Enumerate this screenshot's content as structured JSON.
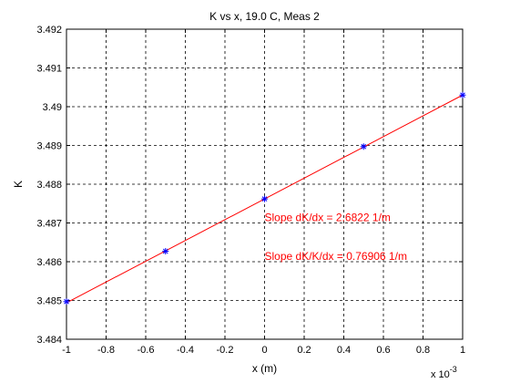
{
  "chart_data": {
    "type": "line",
    "title": "K vs x, 19.0 C, Meas 2",
    "xlabel": "x (m)",
    "ylabel": "K",
    "x_multiplier_label": "x 10",
    "x_multiplier_exponent": "-3",
    "xlim": [
      -0.001,
      0.001
    ],
    "ylim": [
      3.484,
      3.492
    ],
    "x_ticks": [
      -1,
      -0.8,
      -0.6,
      -0.4,
      -0.2,
      0,
      0.2,
      0.4,
      0.6,
      0.8,
      1
    ],
    "x_tick_labels": [
      "-1",
      "-0.8",
      "-0.6",
      "-0.4",
      "-0.2",
      "0",
      "0.2",
      "0.4",
      "0.6",
      "0.8",
      "1"
    ],
    "y_ticks": [
      3.484,
      3.485,
      3.486,
      3.487,
      3.488,
      3.489,
      3.49,
      3.491,
      3.492
    ],
    "y_tick_labels": [
      "3.484",
      "3.485",
      "3.486",
      "3.487",
      "3.488",
      "3.489",
      "3.49",
      "3.491",
      "3.492"
    ],
    "grid": true,
    "series": [
      {
        "type": "scatter",
        "marker": "*",
        "color": "#0000ff",
        "x": [
          -0.001,
          -0.0005,
          0,
          0.0005,
          0.001
        ],
        "y": [
          3.48497,
          3.48627,
          3.48762,
          3.48897,
          3.4903
        ]
      },
      {
        "type": "line",
        "color": "#ff0000",
        "x": [
          -0.001,
          0.001
        ],
        "y": [
          3.48494,
          3.4903
        ]
      }
    ],
    "annotations": [
      {
        "text": "Slope dK/dx = 2.6822 1/m",
        "x": 0,
        "y": 3.48705,
        "color": "#ff0000"
      },
      {
        "text": "Slope dK/K/dx = 0.76906 1/m",
        "x": 0,
        "y": 3.48605,
        "color": "#ff0000"
      }
    ]
  }
}
